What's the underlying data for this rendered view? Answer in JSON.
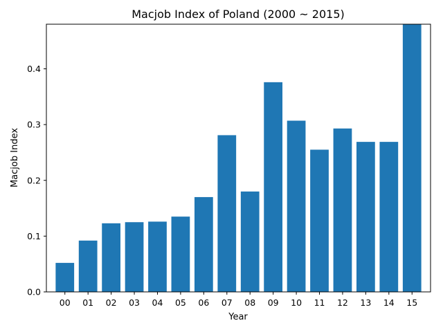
{
  "chart_data": {
    "type": "bar",
    "title": "Macjob Index of Poland (2000 ~ 2015)",
    "xlabel": "Year",
    "ylabel": "Macjob Index",
    "categories": [
      "00",
      "01",
      "02",
      "03",
      "04",
      "05",
      "06",
      "07",
      "08",
      "09",
      "10",
      "11",
      "12",
      "13",
      "14",
      "15"
    ],
    "values": [
      0.052,
      0.092,
      0.123,
      0.125,
      0.126,
      0.135,
      0.17,
      0.281,
      0.18,
      0.376,
      0.307,
      0.255,
      0.293,
      0.269,
      0.269,
      0.48
    ],
    "ylim": [
      0,
      0.48
    ],
    "yticks": [
      "0.0",
      "0.1",
      "0.2",
      "0.3",
      "0.4"
    ],
    "bar_color": "#1f77b4",
    "grid": false,
    "legend": "none"
  }
}
